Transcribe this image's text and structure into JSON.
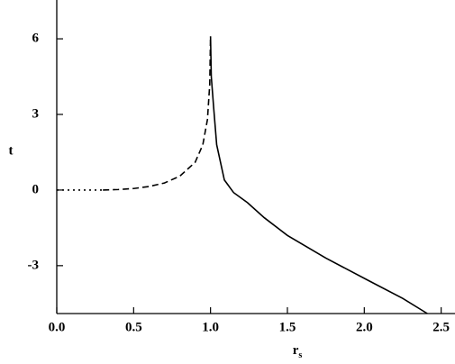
{
  "chart_data": {
    "type": "line",
    "x_label": "r",
    "x_label_subscript": "s",
    "y_label": "t",
    "xlim": [
      0,
      2.59
    ],
    "ylim": [
      -4.9,
      7.54
    ],
    "xticks": [
      {
        "value": 0,
        "label": "0.0"
      },
      {
        "value": 0.5,
        "label": "0.5"
      },
      {
        "value": 1,
        "label": "1.0"
      },
      {
        "value": 1.5,
        "label": "1.5"
      },
      {
        "value": 2,
        "label": "2.0"
      },
      {
        "value": 2.5,
        "label": "2.5"
      }
    ],
    "yticks": [
      -3,
      0,
      3,
      6
    ],
    "series": [
      {
        "color": "#000000",
        "line_style": "dotted",
        "x": [
          0,
          0.1,
          0.2,
          0.3
        ],
        "values": [
          0,
          0,
          0,
          0
        ]
      },
      {
        "color": "#000000",
        "line_style": "dashed",
        "x": [
          0.3,
          0.4,
          0.5,
          0.6,
          0.7,
          0.8,
          0.9,
          0.95,
          0.98,
          0.995,
          1.0
        ],
        "values": [
          0,
          0.02,
          0.06,
          0.14,
          0.28,
          0.55,
          1.1,
          1.8,
          2.8,
          4.2,
          6.1
        ]
      },
      {
        "color": "#000000",
        "line_style": "solid",
        "x": [
          1.0,
          1.005,
          1.02,
          1.04,
          1.09,
          1.15,
          1.24,
          1.35,
          1.5,
          1.75,
          2.03,
          2.25,
          2.41
        ],
        "values": [
          6.1,
          4.5,
          3.3,
          1.8,
          0.4,
          -0.1,
          -0.5,
          -1.1,
          -1.8,
          -2.7,
          -3.6,
          -4.3,
          -4.9
        ]
      }
    ]
  }
}
